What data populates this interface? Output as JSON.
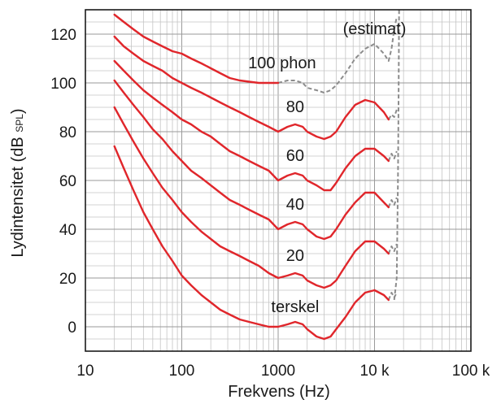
{
  "chart_data": {
    "type": "line",
    "title": "",
    "xlabel": "Frekvens (Hz)",
    "ylabel_main": "Lydintensitet (dB ",
    "ylabel_small": "SPL",
    "ylabel_close": ")",
    "x_scale": "log",
    "xlim": [
      10,
      100000
    ],
    "ylim": [
      -10,
      130
    ],
    "grid": true,
    "x_tick_values": [
      10,
      100,
      1000,
      10000,
      100000
    ],
    "x_tick_labels": [
      "10",
      "100",
      "1000",
      "10 k",
      "100 k"
    ],
    "y_tick_values": [
      0,
      20,
      40,
      60,
      80,
      100,
      120
    ],
    "y_tick_labels": [
      "0",
      "20",
      "40",
      "60",
      "80",
      "100",
      "120"
    ],
    "series_color": "#e0262b",
    "estimate_color": "#8c8c8c",
    "series": [
      {
        "name": "terskel",
        "points": [
          [
            20,
            74
          ],
          [
            25,
            65
          ],
          [
            31.5,
            56
          ],
          [
            40,
            47
          ],
          [
            50,
            40
          ],
          [
            63,
            33
          ],
          [
            80,
            27
          ],
          [
            100,
            21
          ],
          [
            125,
            17
          ],
          [
            160,
            13
          ],
          [
            200,
            10
          ],
          [
            250,
            7
          ],
          [
            315,
            5
          ],
          [
            400,
            3
          ],
          [
            500,
            2
          ],
          [
            630,
            1
          ],
          [
            800,
            0
          ],
          [
            1000,
            0
          ],
          [
            1250,
            1
          ],
          [
            1500,
            2
          ],
          [
            1800,
            1
          ],
          [
            2000,
            -1
          ],
          [
            2500,
            -4
          ],
          [
            3000,
            -5
          ],
          [
            3500,
            -4
          ],
          [
            4000,
            -1
          ],
          [
            5000,
            4
          ],
          [
            6300,
            10
          ],
          [
            8000,
            14
          ],
          [
            10000,
            15
          ],
          [
            12500,
            13
          ],
          [
            14000,
            11
          ]
        ],
        "estimate": [
          [
            14000,
            11
          ],
          [
            15000,
            14
          ],
          [
            16000,
            12
          ],
          [
            17000,
            14
          ]
        ]
      },
      {
        "name": "20",
        "points": [
          [
            20,
            90
          ],
          [
            25,
            83
          ],
          [
            31.5,
            76
          ],
          [
            40,
            69
          ],
          [
            50,
            63
          ],
          [
            63,
            57
          ],
          [
            80,
            52
          ],
          [
            100,
            47
          ],
          [
            125,
            43
          ],
          [
            160,
            39
          ],
          [
            200,
            36
          ],
          [
            250,
            33
          ],
          [
            315,
            31
          ],
          [
            400,
            29
          ],
          [
            500,
            27
          ],
          [
            630,
            25
          ],
          [
            800,
            22
          ],
          [
            1000,
            20
          ],
          [
            1250,
            21
          ],
          [
            1500,
            22
          ],
          [
            1800,
            21
          ],
          [
            2000,
            19
          ],
          [
            2500,
            17
          ],
          [
            3000,
            16
          ],
          [
            3500,
            17
          ],
          [
            4000,
            19
          ],
          [
            5000,
            25
          ],
          [
            6300,
            31
          ],
          [
            8000,
            35
          ],
          [
            10000,
            35
          ],
          [
            12500,
            32
          ],
          [
            14000,
            30
          ]
        ],
        "estimate": [
          [
            14000,
            30
          ],
          [
            15000,
            33
          ],
          [
            16000,
            31
          ],
          [
            17000,
            34
          ]
        ]
      },
      {
        "name": "40",
        "points": [
          [
            20,
            101
          ],
          [
            25,
            96
          ],
          [
            31.5,
            91
          ],
          [
            40,
            86
          ],
          [
            50,
            81
          ],
          [
            63,
            77
          ],
          [
            80,
            72
          ],
          [
            100,
            68
          ],
          [
            125,
            64
          ],
          [
            160,
            61
          ],
          [
            200,
            58
          ],
          [
            250,
            55
          ],
          [
            315,
            52
          ],
          [
            400,
            50
          ],
          [
            500,
            48
          ],
          [
            630,
            46
          ],
          [
            800,
            44
          ],
          [
            1000,
            40
          ],
          [
            1250,
            42
          ],
          [
            1500,
            43
          ],
          [
            1800,
            42
          ],
          [
            2000,
            40
          ],
          [
            2500,
            37
          ],
          [
            3000,
            36
          ],
          [
            3500,
            37
          ],
          [
            4000,
            40
          ],
          [
            5000,
            46
          ],
          [
            6300,
            51
          ],
          [
            8000,
            55
          ],
          [
            10000,
            55
          ],
          [
            12500,
            51
          ],
          [
            14000,
            49
          ]
        ],
        "estimate": [
          [
            14000,
            49
          ],
          [
            15000,
            52
          ],
          [
            16000,
            50
          ],
          [
            17000,
            53
          ]
        ]
      },
      {
        "name": "60",
        "points": [
          [
            20,
            109
          ],
          [
            25,
            105
          ],
          [
            31.5,
            101
          ],
          [
            40,
            97
          ],
          [
            50,
            94
          ],
          [
            63,
            91
          ],
          [
            80,
            88
          ],
          [
            100,
            85
          ],
          [
            125,
            83
          ],
          [
            160,
            80
          ],
          [
            200,
            78
          ],
          [
            250,
            75
          ],
          [
            315,
            72
          ],
          [
            400,
            70
          ],
          [
            500,
            68
          ],
          [
            630,
            66
          ],
          [
            800,
            64
          ],
          [
            1000,
            60
          ],
          [
            1250,
            62
          ],
          [
            1500,
            63
          ],
          [
            1800,
            62
          ],
          [
            2000,
            60
          ],
          [
            2500,
            58
          ],
          [
            3000,
            56
          ],
          [
            3500,
            56
          ],
          [
            4000,
            59
          ],
          [
            5000,
            65
          ],
          [
            6300,
            70
          ],
          [
            8000,
            73
          ],
          [
            10000,
            73
          ],
          [
            12500,
            70
          ],
          [
            14000,
            68
          ]
        ],
        "estimate": [
          [
            14000,
            68
          ],
          [
            15000,
            71
          ],
          [
            16000,
            69
          ],
          [
            17000,
            72
          ]
        ]
      },
      {
        "name": "80",
        "points": [
          [
            20,
            119
          ],
          [
            25,
            115
          ],
          [
            31.5,
            112
          ],
          [
            40,
            109
          ],
          [
            50,
            107
          ],
          [
            63,
            105
          ],
          [
            80,
            102
          ],
          [
            100,
            100
          ],
          [
            125,
            98
          ],
          [
            160,
            96
          ],
          [
            200,
            94
          ],
          [
            250,
            92
          ],
          [
            315,
            90
          ],
          [
            400,
            88
          ],
          [
            500,
            86
          ],
          [
            630,
            84
          ],
          [
            800,
            82
          ],
          [
            1000,
            80
          ],
          [
            1250,
            82
          ],
          [
            1500,
            83
          ],
          [
            1800,
            82
          ],
          [
            2000,
            80
          ],
          [
            2500,
            78
          ],
          [
            3000,
            77
          ],
          [
            3500,
            78
          ],
          [
            4000,
            80
          ],
          [
            5000,
            86
          ],
          [
            6300,
            91
          ],
          [
            8000,
            93
          ],
          [
            10000,
            92
          ],
          [
            12500,
            88
          ],
          [
            14000,
            85
          ]
        ],
        "estimate": [
          [
            14000,
            85
          ],
          [
            15000,
            87
          ],
          [
            16000,
            86
          ],
          [
            17000,
            89
          ]
        ]
      },
      {
        "name": "100 phon",
        "points": [
          [
            20,
            128
          ],
          [
            25,
            125
          ],
          [
            31.5,
            122
          ],
          [
            40,
            119
          ],
          [
            50,
            117
          ],
          [
            63,
            115
          ],
          [
            80,
            113
          ],
          [
            100,
            112
          ],
          [
            125,
            110
          ],
          [
            160,
            108
          ],
          [
            200,
            106
          ],
          [
            250,
            104
          ],
          [
            315,
            102
          ],
          [
            400,
            101
          ],
          [
            500,
            100.5
          ],
          [
            630,
            100
          ],
          [
            800,
            100
          ],
          [
            1000,
            100
          ]
        ],
        "estimate": [
          [
            1000,
            100
          ],
          [
            1250,
            101
          ],
          [
            1500,
            101
          ],
          [
            1800,
            100
          ],
          [
            2000,
            98
          ],
          [
            2500,
            97
          ],
          [
            3000,
            96
          ],
          [
            3500,
            97
          ],
          [
            4000,
            99
          ],
          [
            5000,
            104
          ],
          [
            6300,
            110
          ],
          [
            8000,
            114
          ],
          [
            10000,
            116
          ],
          [
            12500,
            112
          ],
          [
            14000,
            109
          ],
          [
            15000,
            114
          ],
          [
            16000,
            122
          ],
          [
            17000,
            127
          ]
        ]
      }
    ],
    "boundary_estimate": [
      [
        16000,
        11
      ],
      [
        17000,
        20
      ],
      [
        17500,
        60
      ],
      [
        17800,
        100
      ],
      [
        18000,
        130
      ]
    ],
    "annotations": [
      {
        "text": "terskel",
        "x": 1500,
        "y": 6
      },
      {
        "text": "20",
        "x": 1500,
        "y": 27
      },
      {
        "text": "40",
        "x": 1500,
        "y": 48
      },
      {
        "text": "60",
        "x": 1500,
        "y": 68
      },
      {
        "text": "80",
        "x": 1500,
        "y": 88
      },
      {
        "text": "100 phon",
        "x": 1100,
        "y": 106
      },
      {
        "text": "(estimat)",
        "x": 10000,
        "y": 120
      }
    ]
  }
}
